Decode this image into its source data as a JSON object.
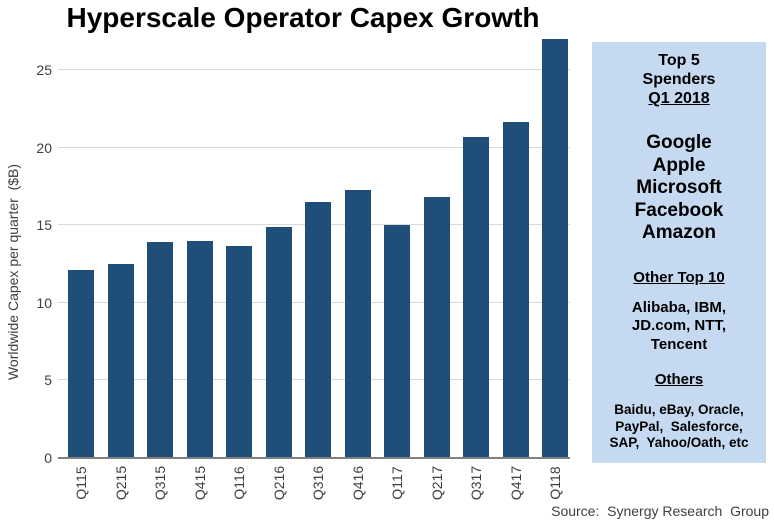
{
  "title": "Hyperscale Operator Capex Growth",
  "chart_data": {
    "type": "bar",
    "categories": [
      "Q115",
      "Q215",
      "Q315",
      "Q415",
      "Q116",
      "Q216",
      "Q316",
      "Q416",
      "Q117",
      "Q217",
      "Q317",
      "Q417",
      "Q118"
    ],
    "values": [
      12.1,
      12.5,
      13.9,
      14.0,
      13.7,
      14.9,
      16.5,
      17.3,
      15.0,
      16.8,
      20.7,
      21.7,
      27.0
    ],
    "title": "Hyperscale Operator Capex Growth",
    "xlabel": "",
    "ylabel": "Worldwide Capex per quarter  ($B)",
    "ylim": [
      0,
      27.6
    ],
    "yticks": [
      0,
      5,
      10,
      15,
      20,
      25
    ],
    "grid": true,
    "legend": "none",
    "bar_color": "#1F4E79",
    "gridline_color": "#D9D9D9",
    "axis_line_color": "#808080",
    "tick_label_color": "#404040"
  },
  "sidebar": {
    "bg_color": "#C5D9F1",
    "top5_heading_line1": "Top 5",
    "top5_heading_line2": "Spenders",
    "top5_heading_line3": "Q1 2018",
    "companies": [
      "Google",
      "Apple",
      "Microsoft",
      "Facebook",
      "Amazon"
    ],
    "other_top10_heading": "Other Top 10",
    "other_top10_lines": [
      "Alibaba, IBM,",
      "JD.com, NTT,",
      "Tencent"
    ],
    "others_heading": "Others",
    "others_lines": [
      "Baidu, eBay, Oracle,",
      "PayPal,  Salesforce,",
      "SAP,  Yahoo/Oath, etc"
    ]
  },
  "source": "Source:  Synergy Research  Group"
}
